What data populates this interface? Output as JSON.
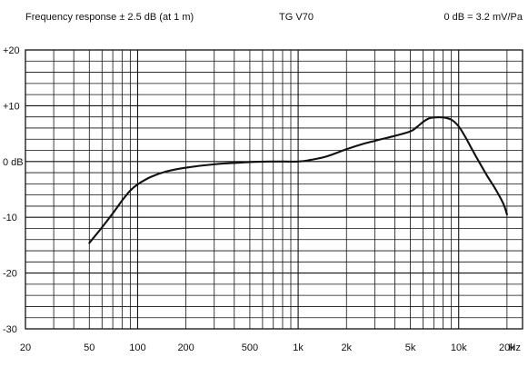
{
  "chart_data": {
    "type": "line",
    "title": "TG V70",
    "header_left": "Frequency response ± 2.5 dB (at 1 m)",
    "header_right": "0 dB = 3.2 mV/Pa",
    "x_scale": "log",
    "xlim": [
      20,
      25000
    ],
    "ylim": [
      -30,
      20
    ],
    "grid": true,
    "x_ticks": [
      {
        "value": 20,
        "label": "20"
      },
      {
        "value": 50,
        "label": "50"
      },
      {
        "value": 100,
        "label": "100"
      },
      {
        "value": 200,
        "label": "200"
      },
      {
        "value": 500,
        "label": "500"
      },
      {
        "value": 1000,
        "label": "1k"
      },
      {
        "value": 2000,
        "label": "2k"
      },
      {
        "value": 5000,
        "label": "5k"
      },
      {
        "value": 10000,
        "label": "10k"
      },
      {
        "value": 20000,
        "label": "20k"
      },
      {
        "value": 25000,
        "label": "Hz"
      }
    ],
    "y_ticks": [
      {
        "value": 20,
        "label": "+20"
      },
      {
        "value": 10,
        "label": "+10"
      },
      {
        "value": 0,
        "label": "0 dB"
      },
      {
        "value": -10,
        "label": "-10"
      },
      {
        "value": -20,
        "label": "-20"
      },
      {
        "value": -30,
        "label": "-30"
      }
    ],
    "series": [
      {
        "points": [
          [
            50,
            -14.6
          ],
          [
            60,
            -11.8
          ],
          [
            70,
            -9.3
          ],
          [
            80,
            -7.0
          ],
          [
            90,
            -5.2
          ],
          [
            100,
            -4.1
          ],
          [
            120,
            -2.8
          ],
          [
            150,
            -1.8
          ],
          [
            200,
            -1.1
          ],
          [
            300,
            -0.5
          ],
          [
            500,
            -0.1
          ],
          [
            700,
            0.0
          ],
          [
            1000,
            0.0
          ],
          [
            1200,
            0.3
          ],
          [
            1500,
            0.9
          ],
          [
            2000,
            2.2
          ],
          [
            2500,
            3.1
          ],
          [
            3000,
            3.7
          ],
          [
            4000,
            4.6
          ],
          [
            5000,
            5.4
          ],
          [
            5500,
            6.2
          ],
          [
            6000,
            7.1
          ],
          [
            6500,
            7.7
          ],
          [
            7000,
            7.9
          ],
          [
            8000,
            7.9
          ],
          [
            9000,
            7.5
          ],
          [
            10000,
            6.3
          ],
          [
            11000,
            4.4
          ],
          [
            12000,
            2.4
          ],
          [
            13000,
            0.6
          ],
          [
            15000,
            -2.5
          ],
          [
            17000,
            -5.0
          ],
          [
            19000,
            -7.6
          ],
          [
            20000,
            -9.5
          ]
        ]
      }
    ]
  }
}
